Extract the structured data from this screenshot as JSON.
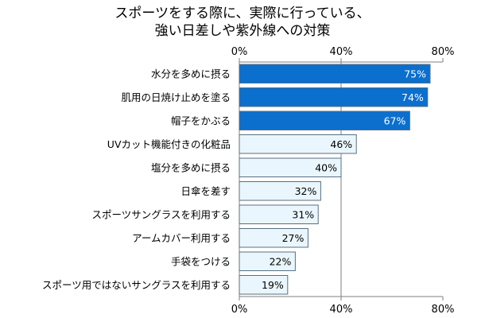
{
  "chart_data": {
    "type": "bar",
    "orientation": "horizontal",
    "title_lines": [
      "スポーツをする際に、実際に行っている、",
      "強い日差しや紫外線への対策"
    ],
    "categories": [
      "水分を多めに摂る",
      "肌用の日焼け止めを塗る",
      "帽子をかぶる",
      "UVカット機能付きの化粧品",
      "塩分を多めに摂る",
      "日傘を差す",
      "スポーツサングラスを利用する",
      "アームカバー利用する",
      "手袋をつける",
      "スポーツ用ではないサングラスを利用する"
    ],
    "values": [
      75,
      74,
      67,
      46,
      40,
      32,
      31,
      27,
      22,
      19
    ],
    "value_labels": [
      "75%",
      "74%",
      "67%",
      "46%",
      "40%",
      "32%",
      "31%",
      "27%",
      "22%",
      "19%"
    ],
    "xlim": [
      0,
      80
    ],
    "x_ticks": [
      0,
      40,
      80
    ],
    "x_tick_labels": [
      "0%",
      "40%",
      "80%"
    ],
    "tick_position": "top and bottom",
    "highlight_count": 3,
    "colors": {
      "highlight_fill": "#0b6fcd",
      "highlight_text": "#ffffff",
      "normal_fill": "#eaf6fd",
      "normal_text": "#000000",
      "bar_border": "#5a6f80",
      "axis": "#7f7f7f"
    },
    "grid": true
  }
}
